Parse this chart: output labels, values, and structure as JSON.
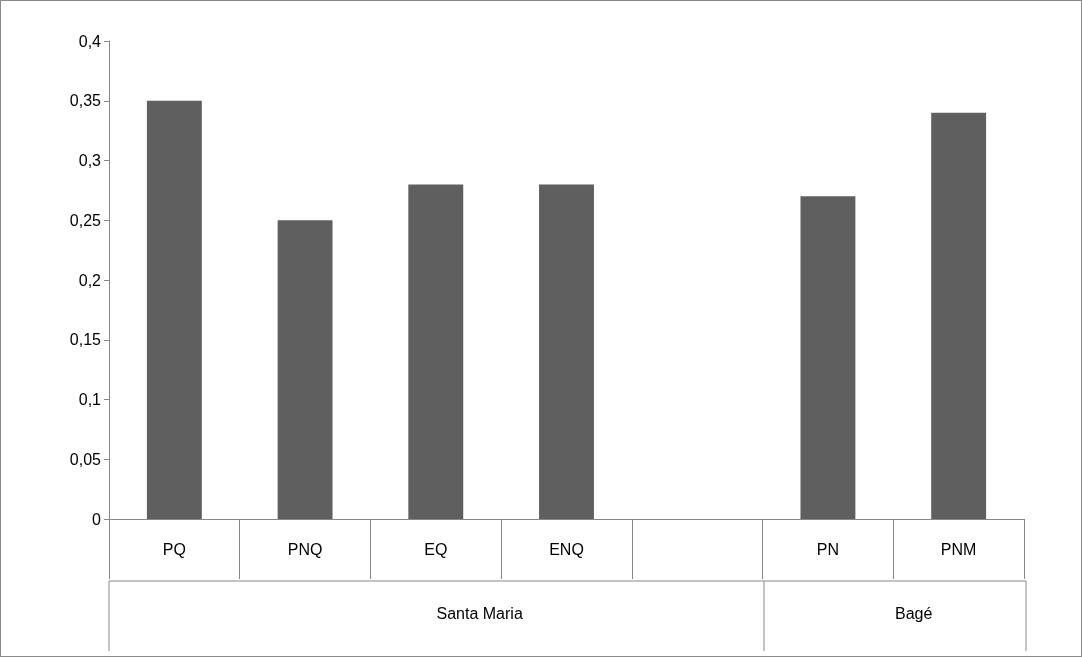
{
  "chart_data": {
    "type": "bar",
    "categories": [
      "PQ",
      "PNQ",
      "EQ",
      "ENQ",
      null,
      "PN",
      "PNM"
    ],
    "values": [
      0.35,
      0.25,
      0.28,
      0.28,
      null,
      0.27,
      0.34
    ],
    "color": "#5f5f5f",
    "ylim": [
      0,
      0.4
    ],
    "yticks": [
      0,
      {
        "value": 0.05,
        "label": "0,05"
      },
      {
        "value": 0.1,
        "label": "0,1"
      },
      {
        "value": 0.15,
        "label": "0,15"
      },
      {
        "value": 0.2,
        "label": "0,2"
      },
      {
        "value": 0.25,
        "label": "0,25"
      },
      {
        "value": 0.3,
        "label": "0,3"
      },
      {
        "value": 0.35,
        "label": "0,35"
      },
      {
        "value": 0.4,
        "label": "0,4"
      }
    ],
    "annotations": [
      "Santa Maria",
      "Bagé"
    ]
  }
}
